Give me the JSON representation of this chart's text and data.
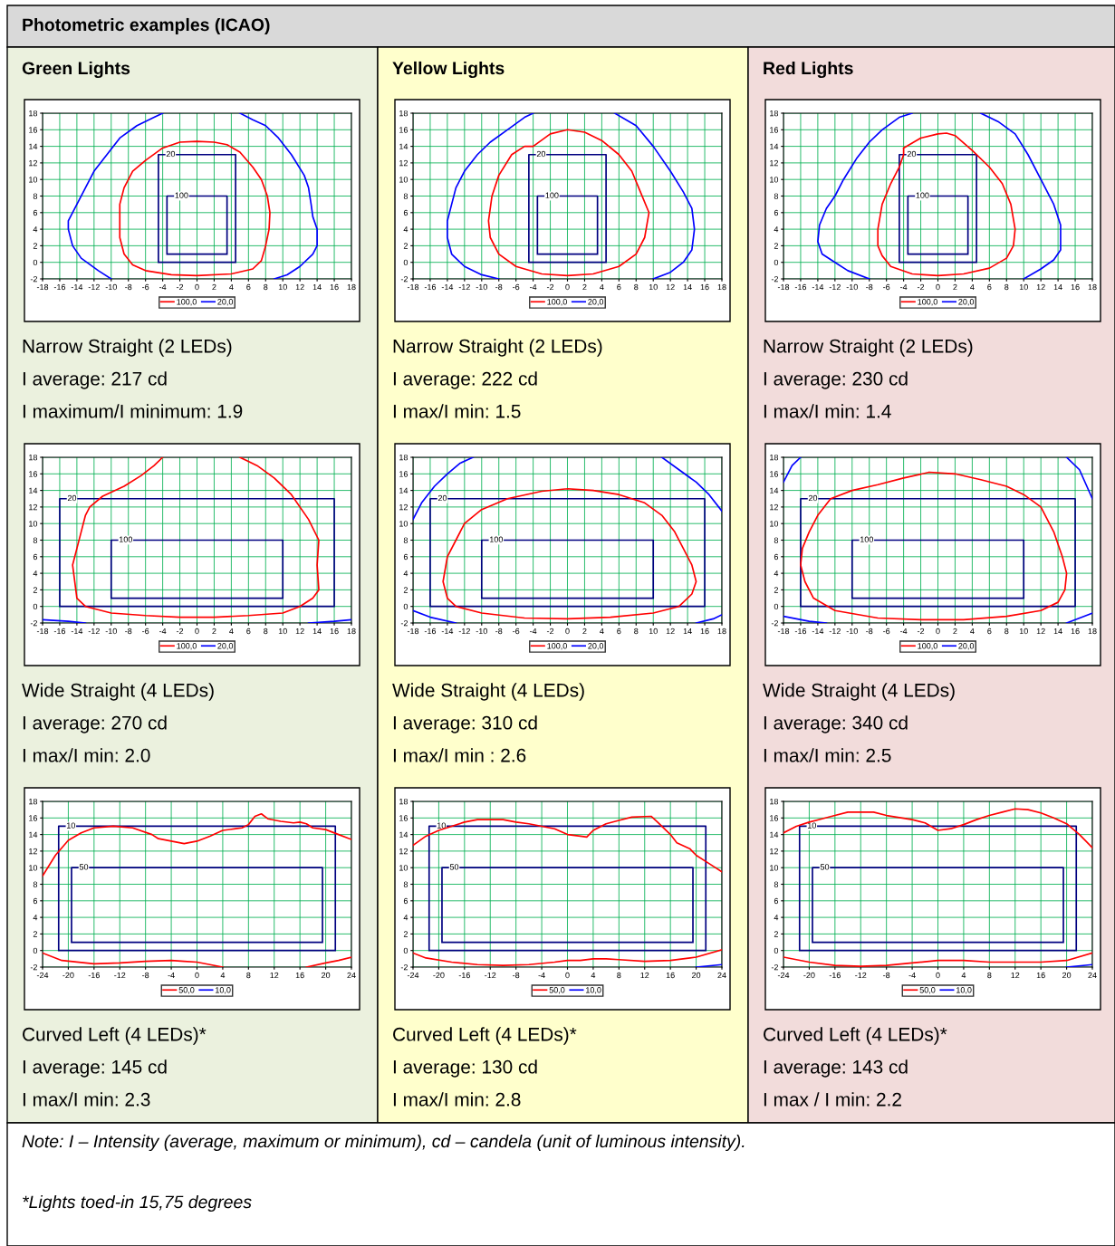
{
  "chart_data": [
    {
      "type": "other",
      "title": "Photometric examples (ICAO)",
      "annotations": [
        "Green Lights",
        "Yellow Lights",
        "Red Lights",
        "Note: I – Intensity (average, maximum or minimum), cd – candela (unit of luminous intensity).",
        "*Lights toed-in 15,75 degrees"
      ]
    },
    {
      "type": "line",
      "xlim": [
        -18,
        18
      ],
      "ylim": [
        -2,
        18
      ],
      "xticks": [
        -18,
        -16,
        -14,
        -12,
        -10,
        -8,
        -6,
        -4,
        -2,
        0,
        2,
        4,
        6,
        8,
        10,
        12,
        14,
        16,
        18
      ],
      "yticks": [
        -2,
        0,
        2,
        4,
        6,
        8,
        10,
        12,
        14,
        16,
        18
      ],
      "grid": true,
      "legend": "bottom",
      "annotations": [
        "20",
        "100",
        "Narrow Straight (2 LEDs)",
        "I average: 217 cd",
        "I maximum/I minimum: 1.9"
      ],
      "series": [
        {
          "name": "100,0",
          "color": "#ff0000",
          "x": [
            -4,
            -2,
            0,
            2,
            3.5,
            5,
            6.5,
            7.5,
            8.2,
            8.5,
            8.4,
            8,
            7.5,
            6.5,
            4,
            0,
            -3,
            -6,
            -7.5,
            -8.5,
            -9,
            -9,
            -9,
            -8.5,
            -7.5,
            -6,
            -4
          ],
          "values": [
            13.8,
            14.5,
            14.6,
            14.5,
            14.2,
            13.3,
            11.5,
            10,
            8,
            6,
            4,
            2,
            0.2,
            -0.8,
            -1.4,
            -1.6,
            -1.5,
            -1,
            -0.3,
            1,
            3,
            5,
            7,
            9,
            11,
            12.3,
            13.8
          ]
        },
        {
          "name": "20,0",
          "color": "#0000ff",
          "x": [
            -10,
            -11.5,
            -13.5,
            -14.5,
            -15,
            -15,
            -14,
            -13,
            -12,
            -10.5,
            -9,
            -7,
            -5,
            -4,
            null,
            5,
            6.5,
            8,
            9.5,
            11,
            12.5,
            13,
            13.3,
            13.5,
            14,
            14,
            13.5,
            12,
            10.5,
            9
          ],
          "values": [
            -2,
            -1,
            0.5,
            2,
            4,
            5,
            7,
            9,
            11,
            13,
            15,
            16.5,
            17.5,
            18,
            null,
            18,
            17.2,
            16.5,
            15,
            13,
            10.5,
            9,
            7,
            5.5,
            4,
            2,
            1,
            -0.5,
            -1.5,
            -2
          ]
        },
        {
          "color": "#000080",
          "x": [
            -4.5,
            4.5,
            4.5,
            -4.5,
            -4.5
          ],
          "values": [
            0,
            0,
            13,
            13,
            0
          ]
        },
        {
          "color": "#000080",
          "x": [
            -3.5,
            3.5,
            3.5,
            -3.5,
            -3.5
          ],
          "values": [
            1,
            1,
            8,
            8,
            1
          ]
        }
      ]
    },
    {
      "type": "line",
      "xlim": [
        -18,
        18
      ],
      "ylim": [
        -2,
        18
      ],
      "xticks": [
        -18,
        -16,
        -14,
        -12,
        -10,
        -8,
        -6,
        -4,
        -2,
        0,
        2,
        4,
        6,
        8,
        10,
        12,
        14,
        16,
        18
      ],
      "yticks": [
        -2,
        0,
        2,
        4,
        6,
        8,
        10,
        12,
        14,
        16,
        18
      ],
      "grid": true,
      "legend": "bottom",
      "annotations": [
        "20",
        "100",
        "Narrow Straight (2 LEDs)",
        "I average: 222 cd",
        "I max/I min: 1.5"
      ],
      "series": [
        {
          "name": "100,0",
          "color": "#ff0000",
          "x": [
            -4,
            -2,
            0,
            2,
            4,
            6,
            7.5,
            8.5,
            9.5,
            9,
            8,
            6,
            3,
            0,
            -3,
            -6,
            -8,
            -9,
            -9.2,
            -8.8,
            -8,
            -6.5,
            -5,
            -4
          ],
          "values": [
            14,
            15.5,
            16,
            15.7,
            14.7,
            13,
            11,
            8.5,
            6,
            3,
            1,
            -0.5,
            -1.4,
            -1.6,
            -1.4,
            -0.5,
            1,
            3,
            5,
            8,
            10.5,
            13,
            14,
            14
          ]
        },
        {
          "name": "20,0",
          "color": "#0000ff",
          "x": [
            -8,
            -10,
            -12,
            -13.5,
            -14,
            -14,
            -13.5,
            -13,
            -12,
            -10.5,
            -9,
            -7,
            -5,
            -4,
            null,
            5.5,
            8,
            10,
            12,
            13.5,
            14.5,
            14.8,
            14.5,
            13.5,
            12,
            10
          ],
          "values": [
            -2,
            -1.5,
            -0.5,
            1,
            3,
            5,
            7,
            9,
            11,
            13,
            14.5,
            16,
            17.5,
            18,
            null,
            18,
            16.5,
            14,
            11,
            8.5,
            6.5,
            4,
            1.5,
            0,
            -1.2,
            -2
          ]
        },
        {
          "color": "#000080",
          "x": [
            -4.5,
            4.5,
            4.5,
            -4.5,
            -4.5
          ],
          "values": [
            0,
            0,
            13,
            13,
            0
          ]
        },
        {
          "color": "#000080",
          "x": [
            -3.5,
            3.5,
            3.5,
            -3.5,
            -3.5
          ],
          "values": [
            1,
            1,
            8,
            8,
            1
          ]
        }
      ]
    },
    {
      "type": "line",
      "xlim": [
        -18,
        18
      ],
      "ylim": [
        -2,
        18
      ],
      "xticks": [
        -18,
        -16,
        -14,
        -12,
        -10,
        -8,
        -6,
        -4,
        -2,
        0,
        2,
        4,
        6,
        8,
        10,
        12,
        14,
        16,
        18
      ],
      "yticks": [
        -2,
        0,
        2,
        4,
        6,
        8,
        10,
        12,
        14,
        16,
        18
      ],
      "grid": true,
      "legend": "bottom",
      "annotations": [
        "20",
        "100",
        "Narrow Straight (2 LEDs)",
        "I average: 230 cd",
        "I max/I min: 1.4"
      ],
      "series": [
        {
          "name": "100,0",
          "color": "#ff0000",
          "x": [
            -4,
            -2,
            0,
            1,
            2,
            4,
            6,
            7.5,
            8.5,
            9,
            8.8,
            8,
            6,
            3,
            0,
            -3,
            -5.5,
            -6.5,
            -7,
            -7,
            -6.5,
            -5.5,
            -4.5,
            -4,
            -4
          ],
          "values": [
            13.8,
            15,
            15.5,
            15.6,
            15.3,
            13.5,
            11.5,
            9.5,
            7,
            4,
            2,
            0.5,
            -0.7,
            -1.4,
            -1.6,
            -1.4,
            -0.5,
            0.8,
            2,
            4,
            7,
            9.5,
            11.5,
            13,
            13.8
          ]
        },
        {
          "name": "20,0",
          "color": "#0000ff",
          "x": [
            -8,
            -10.5,
            -12,
            -13.5,
            -14,
            -13.8,
            -13,
            -12,
            -11,
            -9.5,
            -8,
            -6.5,
            -4.5,
            -3,
            null,
            5,
            7,
            9,
            10.5,
            12,
            13.5,
            14.3,
            14.3,
            13.5,
            12,
            10
          ],
          "values": [
            -2,
            -1,
            0,
            1,
            2.5,
            4.5,
            6.5,
            8,
            10,
            12.5,
            14.5,
            16,
            17.5,
            18,
            null,
            18,
            17,
            15.5,
            13,
            10,
            7,
            4.5,
            1.5,
            0.3,
            -0.8,
            -2
          ]
        },
        {
          "color": "#000080",
          "x": [
            -4.5,
            4.5,
            4.5,
            -4.5,
            -4.5
          ],
          "values": [
            0,
            0,
            13,
            13,
            0
          ]
        },
        {
          "color": "#000080",
          "x": [
            -3.5,
            3.5,
            3.5,
            -3.5,
            -3.5
          ],
          "values": [
            1,
            1,
            8,
            8,
            1
          ]
        }
      ]
    },
    {
      "type": "line",
      "xlim": [
        -18,
        18
      ],
      "ylim": [
        -2,
        18
      ],
      "xticks": [
        -18,
        -16,
        -14,
        -12,
        -10,
        -8,
        -6,
        -4,
        -2,
        0,
        2,
        4,
        6,
        8,
        10,
        12,
        14,
        16,
        18
      ],
      "yticks": [
        -2,
        0,
        2,
        4,
        6,
        8,
        10,
        12,
        14,
        16,
        18
      ],
      "grid": true,
      "legend": "bottom",
      "annotations": [
        "20",
        "100",
        "Wide Straight (4 LEDs)",
        "I average: 270 cd",
        "I max/I min: 2.0"
      ],
      "series": [
        {
          "name": "100,0",
          "color": "#ff0000",
          "x": [
            -4,
            -5,
            -6.5,
            -8.5,
            -11,
            -12.5,
            -13,
            -13.5,
            -14,
            -14.5,
            -14,
            -13,
            -10,
            -6,
            -2,
            2,
            6,
            10,
            12,
            13.5,
            14.2,
            14,
            14.2,
            13,
            11,
            9,
            7,
            5
          ],
          "values": [
            18,
            17,
            15.8,
            14.5,
            13.3,
            12,
            11,
            9,
            7,
            5,
            1,
            0,
            -0.8,
            -1.1,
            -1.3,
            -1.3,
            -1.1,
            -0.8,
            0,
            1,
            2,
            5,
            8,
            10.5,
            13.5,
            15.5,
            17,
            18
          ]
        },
        {
          "name": "20,0",
          "color": "#0000ff",
          "x": [
            -18,
            -15,
            -13,
            null,
            13,
            16,
            18
          ],
          "values": [
            -1.6,
            -1.8,
            -2,
            null,
            -2,
            -1.8,
            -1.6
          ]
        },
        {
          "color": "#000080",
          "x": [
            -16,
            16,
            16,
            -16,
            -16
          ],
          "values": [
            0,
            0,
            13,
            13,
            0
          ]
        },
        {
          "color": "#000080",
          "x": [
            -10,
            10,
            10,
            -10,
            -10
          ],
          "values": [
            1,
            1,
            8,
            8,
            1
          ]
        }
      ]
    },
    {
      "type": "line",
      "xlim": [
        -18,
        18
      ],
      "ylim": [
        -2,
        18
      ],
      "xticks": [
        -18,
        -16,
        -14,
        -12,
        -10,
        -8,
        -6,
        -4,
        -2,
        0,
        2,
        4,
        6,
        8,
        10,
        12,
        14,
        16,
        18
      ],
      "yticks": [
        -2,
        0,
        2,
        4,
        6,
        8,
        10,
        12,
        14,
        16,
        18
      ],
      "grid": true,
      "legend": "bottom",
      "annotations": [
        "20",
        "100",
        "Wide Straight (4 LEDs)",
        "I average: 310 cd",
        "I max/I min : 2.6"
      ],
      "series": [
        {
          "name": "100,0",
          "color": "#ff0000",
          "x": [
            0,
            3,
            6,
            9,
            11,
            12.5,
            13.5,
            14.5,
            15,
            14.5,
            13,
            10,
            5,
            0,
            -5,
            -10,
            -13,
            -14,
            -14.5,
            -14,
            -13,
            -12,
            -10,
            -7,
            -3,
            0
          ],
          "values": [
            14.2,
            14,
            13.5,
            12.5,
            11,
            9,
            7,
            5,
            3,
            1.5,
            0,
            -0.8,
            -1.3,
            -1.5,
            -1.4,
            -0.8,
            0,
            1,
            3,
            6,
            8,
            10,
            11.7,
            13,
            13.9,
            14.2
          ]
        },
        {
          "name": "20,0",
          "color": "#0000ff",
          "x": [
            -18,
            -17,
            -15.5,
            -14,
            -12.5,
            -11,
            null,
            11,
            13,
            15,
            16.5,
            18,
            null,
            -18,
            -16,
            -13,
            null,
            15,
            17,
            18
          ],
          "values": [
            10.5,
            12.5,
            14.5,
            16,
            17.3,
            18,
            null,
            18,
            16.5,
            15,
            13.5,
            11.5,
            null,
            -0.5,
            -1.3,
            -2,
            null,
            -2,
            -1.5,
            -1
          ]
        },
        {
          "color": "#000080",
          "x": [
            -16,
            16,
            16,
            -16,
            -16
          ],
          "values": [
            0,
            0,
            13,
            13,
            0
          ]
        },
        {
          "color": "#000080",
          "x": [
            -10,
            10,
            10,
            -10,
            -10
          ],
          "values": [
            1,
            1,
            8,
            8,
            1
          ]
        }
      ]
    },
    {
      "type": "line",
      "xlim": [
        -18,
        18
      ],
      "ylim": [
        -2,
        18
      ],
      "xticks": [
        -18,
        -16,
        -14,
        -12,
        -10,
        -8,
        -6,
        -4,
        -2,
        0,
        2,
        4,
        6,
        8,
        10,
        12,
        14,
        16,
        18
      ],
      "yticks": [
        -2,
        0,
        2,
        4,
        6,
        8,
        10,
        12,
        14,
        16,
        18
      ],
      "grid": true,
      "legend": "bottom",
      "annotations": [
        "20",
        "100",
        "Wide Straight (4 LEDs)",
        "I average: 340 cd",
        "I max/I min: 2.5"
      ],
      "series": [
        {
          "name": "100,0",
          "color": "#ff0000",
          "x": [
            -1,
            2,
            5,
            8,
            10,
            12,
            13.5,
            14.5,
            15,
            14.8,
            14,
            12,
            8,
            3,
            -2,
            -7,
            -12,
            -14.5,
            -15.5,
            -16,
            -15.8,
            -15,
            -14,
            -12.5,
            -10,
            -7,
            -4,
            -1
          ],
          "values": [
            16.2,
            16,
            15.3,
            14.5,
            13.5,
            12,
            9,
            6,
            4,
            2,
            0.5,
            -0.5,
            -1.2,
            -1.6,
            -1.6,
            -1.4,
            -0.5,
            1,
            3,
            5,
            7,
            9,
            11,
            13,
            14,
            14.7,
            15.5,
            16.2
          ]
        },
        {
          "name": "20,0",
          "color": "#0000ff",
          "x": [
            -18,
            -17,
            -16,
            null,
            15,
            16.5,
            18,
            null,
            -18,
            -15,
            -13,
            null,
            15,
            17,
            18
          ],
          "values": [
            15,
            17,
            18,
            null,
            18,
            16.5,
            13,
            null,
            -1.2,
            -1.8,
            -2,
            null,
            -2,
            -1.2,
            -0.8
          ]
        },
        {
          "color": "#000080",
          "x": [
            -16,
            16,
            16,
            -16,
            -16
          ],
          "values": [
            0,
            0,
            13,
            13,
            0
          ]
        },
        {
          "color": "#000080",
          "x": [
            -10,
            10,
            10,
            -10,
            -10
          ],
          "values": [
            1,
            1,
            8,
            8,
            1
          ]
        }
      ]
    },
    {
      "type": "line",
      "xlim": [
        -24,
        24
      ],
      "ylim": [
        -2,
        18
      ],
      "xticks": [
        -24,
        -20,
        -16,
        -12,
        -8,
        -4,
        0,
        4,
        8,
        12,
        16,
        20,
        24
      ],
      "yticks": [
        -2,
        0,
        2,
        4,
        6,
        8,
        10,
        12,
        14,
        16,
        18
      ],
      "grid": true,
      "legend": "bottom",
      "annotations": [
        "10",
        "50",
        "Curved Left (4 LEDs)*",
        "I average: 145 cd",
        "I max/I min: 2.3"
      ],
      "series": [
        {
          "name": "50,0",
          "color": "#ff0000",
          "x": [
            -24,
            -22,
            -20,
            -18,
            -16,
            -13,
            -10,
            -7,
            -6,
            -4,
            -2,
            0,
            2,
            4,
            6,
            7,
            8,
            9,
            10,
            11,
            13,
            15,
            16,
            17,
            18,
            20,
            22,
            24,
            null,
            -24,
            -21,
            -16,
            -12,
            -8,
            -4,
            -2,
            0,
            2,
            4,
            null,
            17,
            20,
            22,
            24
          ],
          "values": [
            9,
            11.5,
            13.3,
            14.2,
            14.8,
            15,
            14.8,
            14,
            13.5,
            13.2,
            12.9,
            13.2,
            13.8,
            14.5,
            14.7,
            14.8,
            15.2,
            16.2,
            16.5,
            15.9,
            15.6,
            15.4,
            15.5,
            15.3,
            14.8,
            14.6,
            14,
            13.4,
            null,
            -0.3,
            -1.2,
            -1.6,
            -1.5,
            -1.3,
            -1.2,
            -1.3,
            -1.4,
            -1.7,
            -2,
            null,
            -2,
            -1.5,
            -1.2,
            -0.8
          ]
        },
        {
          "name": "10,0",
          "color": "#0000ff"
        },
        {
          "color": "#000080",
          "x": [
            -21.5,
            21.5,
            21.5,
            -21.5,
            -21.5
          ],
          "values": [
            0,
            0,
            15,
            15,
            0
          ]
        },
        {
          "color": "#000080",
          "x": [
            -19.5,
            19.5,
            19.5,
            -19.5,
            -19.5
          ],
          "values": [
            1,
            1,
            10,
            10,
            1
          ]
        }
      ]
    },
    {
      "type": "line",
      "xlim": [
        -24,
        24
      ],
      "ylim": [
        -2,
        18
      ],
      "xticks": [
        -24,
        -20,
        -16,
        -12,
        -8,
        -4,
        0,
        4,
        8,
        12,
        16,
        20,
        24
      ],
      "yticks": [
        -2,
        0,
        2,
        4,
        6,
        8,
        10,
        12,
        14,
        16,
        18
      ],
      "grid": true,
      "legend": "bottom",
      "annotations": [
        "10",
        "50",
        "Curved Left (4 LEDs)*",
        "I average: 130 cd",
        "I max/I min: 2.8"
      ],
      "series": [
        {
          "name": "50,0",
          "color": "#ff0000",
          "x": [
            -24,
            -22,
            -20,
            -18,
            -16,
            -14,
            -12,
            -10,
            -8,
            -6,
            -4,
            -2,
            0,
            2,
            3,
            4,
            6,
            8,
            10,
            13,
            14,
            16,
            17,
            19,
            20,
            22,
            24,
            null,
            -24,
            -22,
            -18,
            -14,
            -10,
            -6,
            -2,
            0,
            2,
            4,
            6,
            8,
            12,
            16,
            20,
            24
          ],
          "values": [
            12.7,
            13.8,
            14.5,
            15,
            15.5,
            15.8,
            15.8,
            15.8,
            15.5,
            15.3,
            15,
            14.7,
            14,
            13.8,
            13.7,
            14.5,
            15.3,
            15.7,
            16.1,
            16.2,
            15.5,
            14,
            13,
            12.3,
            11.5,
            10.5,
            9.5,
            null,
            -0.3,
            -0.9,
            -1.4,
            -1.7,
            -1.8,
            -1.7,
            -1.4,
            -1.2,
            -1.2,
            -1,
            -1,
            -1.1,
            -1.3,
            -1.2,
            -0.8,
            0.1
          ]
        },
        {
          "name": "10,0",
          "color": "#0000ff",
          "x": [
            20,
            24
          ],
          "values": [
            -2,
            -1.7
          ]
        },
        {
          "color": "#000080",
          "x": [
            -21.5,
            21.5,
            21.5,
            -21.5,
            -21.5
          ],
          "values": [
            0,
            0,
            15,
            15,
            0
          ]
        },
        {
          "color": "#000080",
          "x": [
            -19.5,
            19.5,
            19.5,
            -19.5,
            -19.5
          ],
          "values": [
            1,
            1,
            10,
            10,
            1
          ]
        }
      ]
    },
    {
      "type": "line",
      "xlim": [
        -24,
        24
      ],
      "ylim": [
        -2,
        18
      ],
      "xticks": [
        -24,
        -20,
        -16,
        -12,
        -8,
        -4,
        0,
        4,
        8,
        12,
        16,
        20,
        24
      ],
      "yticks": [
        -2,
        0,
        2,
        4,
        6,
        8,
        10,
        12,
        14,
        16,
        18
      ],
      "grid": true,
      "legend": "bottom",
      "annotations": [
        "10",
        "50",
        "Curved Left (4 LEDs)*",
        "I average: 143 cd",
        "I max / I min: 2.2"
      ],
      "series": [
        {
          "name": "50,0",
          "color": "#ff0000",
          "x": [
            -24,
            -22,
            -20,
            -18,
            -16,
            -14,
            -10,
            -8,
            -4,
            -2,
            0,
            2,
            4,
            6,
            8,
            10,
            12,
            14,
            16,
            18,
            20,
            22,
            24,
            null,
            -24,
            -20,
            -16,
            -12,
            -8,
            -4,
            0,
            4,
            8,
            12,
            16,
            20,
            24
          ],
          "values": [
            14.2,
            15,
            15.5,
            15.9,
            16.3,
            16.7,
            16.7,
            16.3,
            15.8,
            15.4,
            14.5,
            14.7,
            15.2,
            15.8,
            16.3,
            16.7,
            17.1,
            17,
            16.6,
            16,
            15.3,
            14,
            12.4,
            null,
            -0.8,
            -1.4,
            -1.8,
            -1.9,
            -1.8,
            -1.5,
            -1.2,
            -1.2,
            -1.4,
            -1.4,
            -1.4,
            -1.2,
            -0.3
          ]
        },
        {
          "name": "10,0",
          "color": "#0000ff",
          "x": [
            20,
            24
          ],
          "values": [
            -2,
            -1.7
          ]
        },
        {
          "color": "#000080",
          "x": [
            -21.5,
            21.5,
            21.5,
            -21.5,
            -21.5
          ],
          "values": [
            0,
            0,
            15,
            15,
            0
          ]
        },
        {
          "color": "#000080",
          "x": [
            -19.5,
            19.5,
            19.5,
            -19.5,
            -19.5
          ],
          "values": [
            1,
            1,
            10,
            10,
            1
          ]
        }
      ]
    }
  ]
}
